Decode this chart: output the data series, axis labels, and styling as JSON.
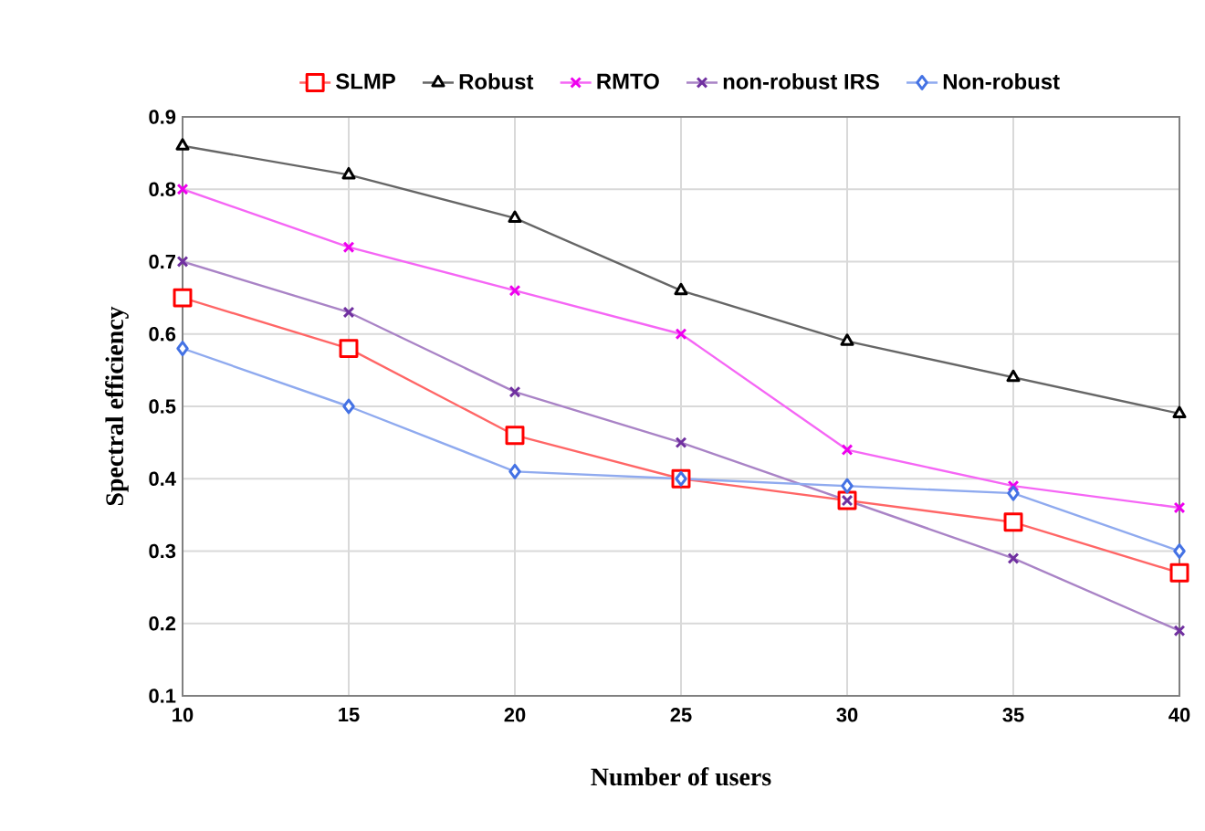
{
  "chart_data": {
    "type": "line",
    "xlabel": "Number of users",
    "ylabel": "Spectral efficiency",
    "x": [
      10,
      15,
      20,
      25,
      30,
      35,
      40
    ],
    "series": [
      {
        "name": "SLMP",
        "color": "#ff0000",
        "marker": "square",
        "values": [
          0.65,
          0.58,
          0.46,
          0.4,
          0.37,
          0.34,
          0.27
        ]
      },
      {
        "name": "Robust",
        "color": "#000000",
        "marker": "triangle",
        "values": [
          0.86,
          0.82,
          0.76,
          0.66,
          0.59,
          0.54,
          0.49
        ]
      },
      {
        "name": "RMTO",
        "color": "#ee00ee",
        "marker": "cross",
        "values": [
          0.8,
          0.72,
          0.66,
          0.6,
          0.44,
          0.39,
          0.36
        ]
      },
      {
        "name": "non-robust IRS",
        "color": "#7030a0",
        "marker": "cross",
        "values": [
          0.7,
          0.63,
          0.52,
          0.45,
          0.37,
          0.29,
          0.19
        ]
      },
      {
        "name": "Non-robust",
        "color": "#4472e4",
        "marker": "diamond",
        "values": [
          0.58,
          0.5,
          0.41,
          0.4,
          0.39,
          0.38,
          0.3
        ]
      }
    ],
    "xlim": [
      10,
      40
    ],
    "xticks": [
      10,
      15,
      20,
      25,
      30,
      35,
      40
    ],
    "ylim": [
      0.1,
      0.9
    ],
    "yticks": [
      0.1,
      0.2,
      0.3,
      0.4,
      0.5,
      0.6,
      0.7,
      0.8,
      0.9
    ],
    "grid": true,
    "legend": "top",
    "line_style": "solid"
  }
}
